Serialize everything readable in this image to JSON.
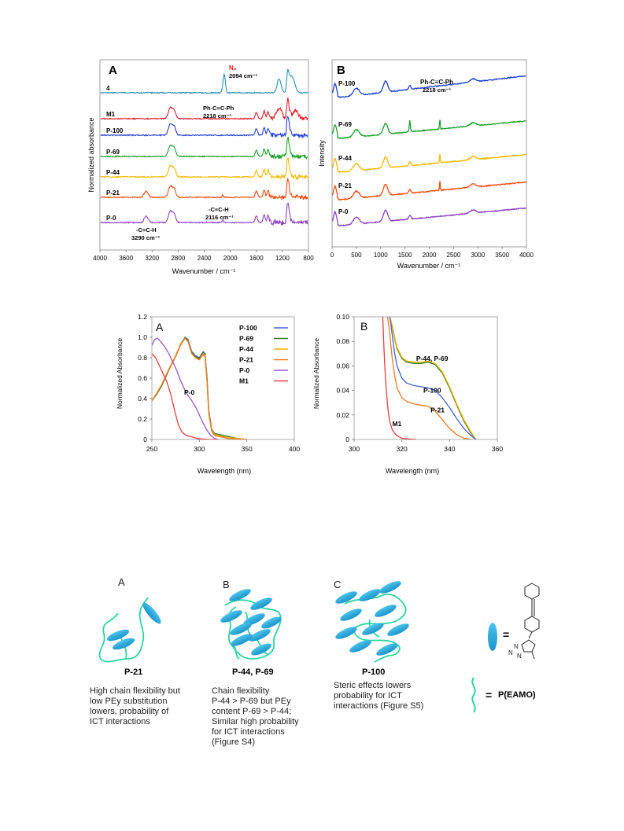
{
  "chart_data": [
    {
      "id": "ftir_A",
      "type": "line",
      "panel_label": "A",
      "xlabel": "Wavenumber  / cm⁻¹",
      "ylabel": "Normalized  absorbance",
      "xlim": [
        4000,
        800
      ],
      "x_reversed": true,
      "xticks": [
        4000,
        3600,
        3200,
        2800,
        2400,
        2000,
        1600,
        1200,
        800
      ],
      "grid": false,
      "series": [
        {
          "name": "4",
          "color": "#2a8fb0",
          "offset": 6
        },
        {
          "name": "M1",
          "color": "#e8202a",
          "offset": 5
        },
        {
          "name": "P-100",
          "color": "#1f3fd0",
          "offset": 4
        },
        {
          "name": "P-69",
          "color": "#1aa02a",
          "offset": 3
        },
        {
          "name": "P-44",
          "color": "#f5b800",
          "offset": 2
        },
        {
          "name": "P-21",
          "color": "#f04a10",
          "offset": 1
        },
        {
          "name": "P-0",
          "color": "#8a3fc0",
          "offset": 0
        }
      ],
      "annotations": [
        {
          "text": "N₃",
          "x": 2094
        },
        {
          "text": "2094 cm⁻¹",
          "x": 2094
        },
        {
          "text": "Ph-C≡C-Ph",
          "x": 2218
        },
        {
          "text": "2218 cm⁻¹",
          "x": 2218
        },
        {
          "text": "-C≡C-H",
          "x": 2116
        },
        {
          "text": "2116 cm⁻¹",
          "x": 2116
        },
        {
          "text": "-C≡C-H",
          "x": 3290
        },
        {
          "text": "3290 cm⁻¹",
          "x": 3290
        }
      ]
    },
    {
      "id": "raman_B",
      "type": "line",
      "panel_label": "B",
      "xlabel": "Wavenumber / cm⁻¹",
      "ylabel": "Intensity",
      "xlim": [
        0,
        4000
      ],
      "xticks": [
        0,
        500,
        1000,
        1500,
        2000,
        2500,
        3000,
        3500,
        4000
      ],
      "grid": false,
      "series": [
        {
          "name": "P-100",
          "color": "#1f3fd0",
          "offset": 4
        },
        {
          "name": "P-69",
          "color": "#1aa02a",
          "offset": 3
        },
        {
          "name": "P-44",
          "color": "#f5b800",
          "offset": 2
        },
        {
          "name": "P-21",
          "color": "#f04a10",
          "offset": 1
        },
        {
          "name": "P-0",
          "color": "#8a3fc0",
          "offset": 0
        }
      ],
      "annotations": [
        {
          "text": "Ph-C≡C-Ph",
          "x": 2218
        },
        {
          "text": "2218 cm⁻¹",
          "x": 2218
        }
      ]
    },
    {
      "id": "uv_A",
      "type": "line",
      "panel_label": "A",
      "xlabel": "Wavelength (nm)",
      "ylabel": "Normalized Absorbance",
      "xlim": [
        250,
        400
      ],
      "ylim": [
        0,
        1.2
      ],
      "xticks": [
        250,
        300,
        350,
        400
      ],
      "yticks": [
        0,
        0.2,
        0.4,
        0.6,
        0.8,
        1.0,
        1.2
      ],
      "ytick_labels": [
        "0",
        "0.2",
        "0.4",
        "0.6",
        "0.8",
        "1.0",
        "1.2"
      ],
      "grid": false,
      "legend_position": "top-right",
      "series": [
        {
          "name": "P-100",
          "color": "#4a5ed8",
          "x": [
            250,
            255,
            260,
            265,
            270,
            275,
            280,
            285,
            288,
            292,
            296,
            300,
            304,
            306,
            308,
            310,
            313,
            316,
            320,
            325,
            330,
            340,
            350
          ],
          "y": [
            0.38,
            0.44,
            0.52,
            0.62,
            0.72,
            0.82,
            0.93,
            1.0,
            0.98,
            0.86,
            0.82,
            0.8,
            0.86,
            0.84,
            0.62,
            0.28,
            0.1,
            0.06,
            0.05,
            0.04,
            0.03,
            0.01,
            0
          ]
        },
        {
          "name": "P-69",
          "color": "#2e7d2a",
          "x": [
            250,
            255,
            260,
            265,
            270,
            275,
            280,
            285,
            288,
            292,
            296,
            300,
            304,
            306,
            308,
            310,
            313,
            316,
            320,
            325,
            330,
            340,
            350
          ],
          "y": [
            0.38,
            0.44,
            0.52,
            0.62,
            0.72,
            0.81,
            0.92,
            1.0,
            0.97,
            0.85,
            0.81,
            0.79,
            0.85,
            0.83,
            0.6,
            0.27,
            0.1,
            0.06,
            0.05,
            0.04,
            0.03,
            0.01,
            0
          ]
        },
        {
          "name": "P-44",
          "color": "#f0b400",
          "x": [
            250,
            255,
            260,
            265,
            270,
            275,
            280,
            285,
            288,
            292,
            296,
            300,
            304,
            306,
            308,
            310,
            313,
            316,
            320,
            325,
            330,
            340,
            350
          ],
          "y": [
            0.38,
            0.45,
            0.53,
            0.63,
            0.73,
            0.82,
            0.93,
            0.99,
            0.96,
            0.84,
            0.8,
            0.78,
            0.84,
            0.82,
            0.58,
            0.26,
            0.09,
            0.05,
            0.04,
            0.03,
            0.02,
            0.01,
            0
          ]
        },
        {
          "name": "P-21",
          "color": "#f07a20",
          "x": [
            250,
            255,
            260,
            265,
            270,
            275,
            280,
            285,
            288,
            292,
            296,
            300,
            304,
            306,
            308,
            310,
            313,
            316,
            320,
            325,
            330,
            340,
            350
          ],
          "y": [
            0.38,
            0.45,
            0.53,
            0.63,
            0.72,
            0.81,
            0.92,
            0.99,
            0.96,
            0.84,
            0.8,
            0.78,
            0.83,
            0.81,
            0.57,
            0.25,
            0.08,
            0.04,
            0.03,
            0.02,
            0.01,
            0.005,
            0
          ]
        },
        {
          "name": "P-0",
          "color": "#9b55c8",
          "x": [
            250,
            253,
            256,
            260,
            264,
            268,
            272,
            276,
            280,
            284,
            288,
            292,
            296,
            300,
            304,
            308,
            312,
            316,
            320
          ],
          "y": [
            0.92,
            0.98,
            0.99,
            0.95,
            0.9,
            0.84,
            0.76,
            0.68,
            0.58,
            0.5,
            0.43,
            0.38,
            0.32,
            0.24,
            0.16,
            0.09,
            0.04,
            0.01,
            0
          ]
        },
        {
          "name": "M1",
          "color": "#e84040",
          "x": [
            250,
            254,
            258,
            262,
            266,
            270,
            274,
            278,
            282,
            286,
            290,
            294,
            298,
            302,
            306,
            310,
            314,
            318
          ],
          "y": [
            0.84,
            0.8,
            0.72,
            0.64,
            0.56,
            0.44,
            0.28,
            0.14,
            0.07,
            0.04,
            0.03,
            0.02,
            0.01,
            0.005,
            0.003,
            0.001,
            0,
            0
          ]
        }
      ],
      "annotations": [
        {
          "text": "P-0",
          "x": 284,
          "y": 0.44
        }
      ]
    },
    {
      "id": "uv_B",
      "type": "line",
      "panel_label": "B",
      "xlabel": "Wavelength (nm)",
      "ylabel": "Normalized Absorbance",
      "xlim": [
        300,
        360
      ],
      "ylim": [
        0,
        0.1
      ],
      "xticks": [
        300,
        320,
        340,
        360
      ],
      "yticks": [
        0,
        0.02,
        0.04,
        0.06,
        0.08,
        0.1
      ],
      "ytick_labels": [
        "0",
        "0.02",
        "0.04",
        "0.06",
        "0.08",
        "0.10"
      ],
      "grid": false,
      "series": [
        {
          "name": "P-44, P-69",
          "color": "#2e7d2a",
          "x": [
            315,
            316,
            317,
            318,
            320,
            322,
            325,
            328,
            331,
            334,
            337,
            340,
            343,
            346,
            349,
            351
          ],
          "y": [
            0.1,
            0.092,
            0.082,
            0.074,
            0.066,
            0.063,
            0.062,
            0.062,
            0.063,
            0.061,
            0.054,
            0.042,
            0.028,
            0.015,
            0.005,
            0
          ]
        },
        {
          "name": "P-44",
          "color": "#f0b400",
          "x": [
            315,
            316,
            317,
            318,
            320,
            322,
            325,
            328,
            331,
            334,
            337,
            340,
            343,
            346,
            349,
            351
          ],
          "y": [
            0.1,
            0.093,
            0.083,
            0.075,
            0.067,
            0.064,
            0.063,
            0.063,
            0.064,
            0.062,
            0.055,
            0.043,
            0.029,
            0.016,
            0.006,
            0
          ]
        },
        {
          "name": "P-100",
          "color": "#4a5ed8",
          "x": [
            315,
            316,
            317,
            318,
            320,
            322,
            325,
            328,
            331,
            334,
            337,
            340,
            343,
            346,
            349,
            351
          ],
          "y": [
            0.1,
            0.085,
            0.07,
            0.06,
            0.05,
            0.046,
            0.044,
            0.043,
            0.042,
            0.04,
            0.034,
            0.026,
            0.017,
            0.009,
            0.003,
            0
          ]
        },
        {
          "name": "P-21",
          "color": "#f07a20",
          "x": [
            314,
            315,
            316,
            317,
            318,
            320,
            322,
            325,
            328,
            331,
            334,
            337,
            340,
            343,
            346,
            349
          ],
          "y": [
            0.1,
            0.085,
            0.066,
            0.052,
            0.042,
            0.034,
            0.031,
            0.029,
            0.028,
            0.027,
            0.023,
            0.016,
            0.009,
            0.004,
            0.001,
            0
          ]
        },
        {
          "name": "M1",
          "color": "#e84040",
          "x": [
            312,
            312.5,
            313,
            313.5,
            314,
            314.5,
            315,
            316,
            317,
            318,
            320,
            323,
            326
          ],
          "y": [
            0.1,
            0.075,
            0.055,
            0.04,
            0.028,
            0.02,
            0.014,
            0.008,
            0.005,
            0.003,
            0.001,
            0.0003,
            0
          ]
        }
      ],
      "labels": [
        {
          "text": "P-44, P-69",
          "x": 326,
          "y": 0.064
        },
        {
          "text": "P-100",
          "x": 329,
          "y": 0.038
        },
        {
          "text": "P-21",
          "x": 332,
          "y": 0.022
        },
        {
          "text": "M1",
          "x": 316,
          "y": 0.011
        }
      ]
    }
  ],
  "schematic": {
    "letters": [
      "A",
      "B",
      "C"
    ],
    "panels": [
      {
        "title": "P-21",
        "description": [
          "High chain flexibility but",
          "low PEy substitution",
          "lowers,  probability of",
          "ICT interactions"
        ]
      },
      {
        "title": "P-44, P-69",
        "description": [
          "Chain flexibility",
          "P-44 > P-69 but PEy",
          "content P-69 > P-44;",
          "Similar high probability",
          "for ICT interactions",
          "(Figure S4)"
        ]
      },
      {
        "title": "P-100",
        "description": [
          "Steric effects lowers",
          "probability for ICT",
          "interactions (Figure S5)"
        ]
      }
    ],
    "legend_equals": "=",
    "legend_polymer": "P(EAMO)",
    "triazole_n1": "N",
    "triazole_n2": "N",
    "triazole_n3": "N",
    "colors": {
      "ellipse": "#2aa8d8",
      "chain": "#2ad6a0"
    }
  }
}
